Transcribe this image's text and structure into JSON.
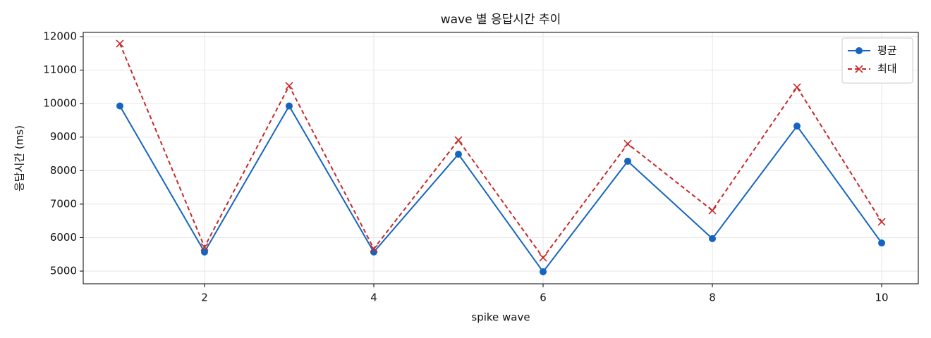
{
  "chart_data": {
    "type": "line",
    "title": "wave 별 응답시간 추이",
    "xlabel": "spike wave",
    "ylabel": "응답시간 (ms)",
    "x": [
      1,
      2,
      3,
      4,
      5,
      6,
      7,
      8,
      9,
      10
    ],
    "series": [
      {
        "name": "평균",
        "color": "#1565c0",
        "marker": "o",
        "dash": false,
        "values": [
          9930,
          5570,
          9930,
          5570,
          8490,
          4980,
          8280,
          5970,
          9330,
          5840
        ]
      },
      {
        "name": "최대",
        "color": "#c62828",
        "marker": "x",
        "dash": true,
        "values": [
          11790,
          5720,
          10530,
          5670,
          8910,
          5400,
          8800,
          6810,
          10490,
          6470
        ]
      }
    ],
    "xlim": [
      0.567,
      10.433
    ],
    "ylim": [
      4622,
      12126
    ],
    "xticks": [
      2,
      4,
      6,
      8,
      10
    ],
    "yticks": [
      5000,
      6000,
      7000,
      8000,
      9000,
      10000,
      11000,
      12000
    ],
    "grid": true,
    "legend": "upper right"
  }
}
